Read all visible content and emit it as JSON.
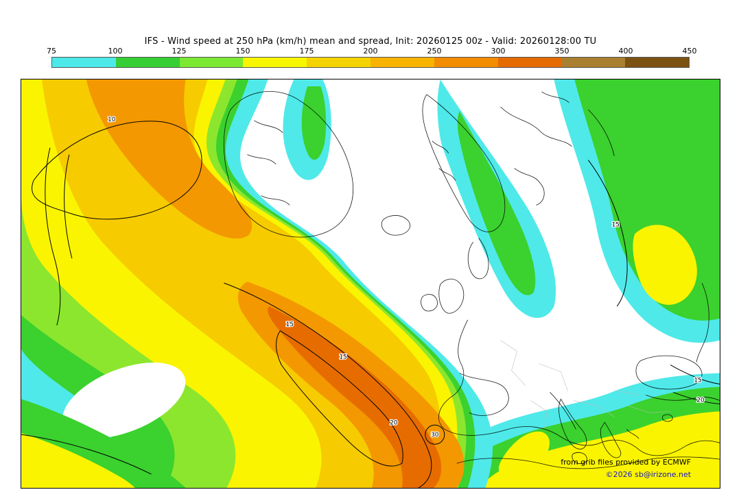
{
  "title": "IFS - Wind speed at 250 hPa (km/h) mean and spread, Init: 20260125 00z - Valid: 20260128:00 TU",
  "colorbar": {
    "ticks": [
      "75",
      "100",
      "125",
      "150",
      "175",
      "200",
      "250",
      "300",
      "350",
      "400",
      "450"
    ],
    "colors": [
      "#4DE9E9",
      "#35CE35",
      "#7BE832",
      "#F8F500",
      "#F4D300",
      "#F7B300",
      "#F28C00",
      "#E56A00",
      "#A8802F",
      "#7C5213"
    ]
  },
  "map": {
    "colors": {
      "cyan": "#4FE9E9",
      "green": "#3BD12E",
      "green_light": "#8CE62E",
      "yellow": "#FAF400",
      "gold": "#F6CB00",
      "orange": "#F39800",
      "orange_dark": "#E66C00",
      "link_blue": "#1A16C8"
    },
    "contour_labels": [
      "10",
      "15",
      "15",
      "20",
      "30",
      "15",
      "15",
      "20"
    ],
    "attribution_line1": "from grib files provided by ECMWF",
    "attribution_line2": "©2026 sb@irizone.net"
  }
}
